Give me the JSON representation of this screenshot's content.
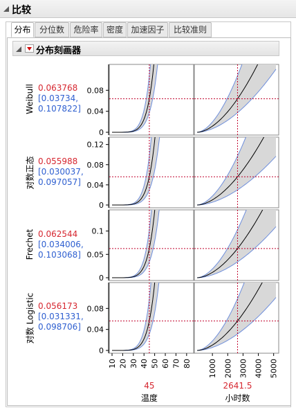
{
  "title": "比较",
  "tabs": [
    {
      "label": "分布",
      "active": true
    },
    {
      "label": "分位数",
      "active": false
    },
    {
      "label": "危险率",
      "active": false
    },
    {
      "label": "密度",
      "active": false
    },
    {
      "label": "加速因子",
      "active": false
    },
    {
      "label": "比较准则",
      "active": false
    }
  ],
  "profiler_title": "分布刻画器",
  "colors": {
    "estimate": "#d6262f",
    "interval": "#2e5fd0",
    "band": "#d8d8d8",
    "band_edge": "#6f8fdc",
    "curve": "#000000",
    "crosshair": "#c0002a"
  },
  "rows": [
    {
      "label": "Weibull",
      "estimate": "0.063768",
      "ci_line1": "[0.03734,",
      "ci_line2": "0.107822]",
      "yticks": [
        "0.08",
        "0.04",
        "0"
      ],
      "ytick_values": [
        0.08,
        0.04,
        0
      ],
      "ymax": 0.12
    },
    {
      "label": "对数正态",
      "estimate": "0.055988",
      "ci_line1": "[0.030037,",
      "ci_line2": "0.097057]",
      "yticks": [
        "0.12",
        "0.08",
        "0.04",
        "0"
      ],
      "ytick_values": [
        0.12,
        0.08,
        0.04,
        0
      ],
      "ymax": 0.125
    },
    {
      "label": "Frechet",
      "estimate": "0.062544",
      "ci_line1": "[0.034006,",
      "ci_line2": "0.103068]",
      "yticks": [
        "0.1",
        "0.05",
        "0"
      ],
      "ytick_values": [
        0.1,
        0.05,
        0
      ],
      "ymax": 0.135
    },
    {
      "label": "对数 Logistic",
      "estimate": "0.056173",
      "ci_line1": "[0.031331,",
      "ci_line2": "0.098706]",
      "yticks": [
        "0.08",
        "0.04",
        "0"
      ],
      "ytick_values": [
        0.08,
        0.04,
        0
      ],
      "ymax": 0.12
    }
  ],
  "factors": [
    {
      "name": "温度",
      "value": "45",
      "value_num": 45,
      "xmin": 10,
      "xmax": 84,
      "ticks": [
        "10",
        "20",
        "30",
        "40",
        "50",
        "60",
        "70",
        "80"
      ],
      "tick_values": [
        10,
        20,
        30,
        40,
        50,
        60,
        70,
        80
      ]
    },
    {
      "name": "小时数",
      "value": "2641.5",
      "value_num": 2641.5,
      "xmin": 0,
      "xmax": 5150,
      "ticks": [
        "1000",
        "2000",
        "3000",
        "4000",
        "5000"
      ],
      "tick_values": [
        1000,
        2000,
        3000,
        4000,
        5000
      ]
    }
  ]
}
